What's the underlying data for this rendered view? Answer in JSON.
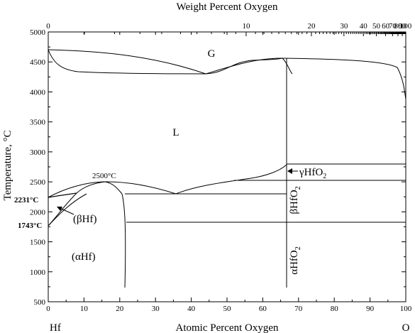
{
  "diagram": {
    "top_axis_title": "Weight Percent Oxygen",
    "bottom_axis_title": "Atomic Percent Oxygen",
    "left_axis_title": "Temperature, °C",
    "left_component": "Hf",
    "right_component": "O",
    "bottom_ticks": [
      "0",
      "10",
      "20",
      "30",
      "40",
      "50",
      "60",
      "70",
      "80",
      "90",
      "100"
    ],
    "top_ticks": [
      "0",
      "10",
      "20",
      "30",
      "40",
      "50",
      "60",
      "70",
      "80",
      "90",
      "100"
    ],
    "left_ticks": [
      "500",
      "1000",
      "1500",
      "2000",
      "2500",
      "3000",
      "3500",
      "4000",
      "4500",
      "5000"
    ],
    "regions": {
      "gas": "G",
      "liquid": "L",
      "beta_hf": "(βHf)",
      "alpha_hf": "(αHf)"
    },
    "annotations": {
      "t_2500": "2500°C",
      "t_2231": "2231°C",
      "t_1743": "1743°C"
    },
    "phases": {
      "gamma": {
        "prefix": "γHfO",
        "sub": "2"
      },
      "beta": {
        "prefix": "βHfO",
        "sub": "2"
      },
      "alpha": {
        "prefix": "αHfO",
        "sub": "2"
      }
    }
  }
}
